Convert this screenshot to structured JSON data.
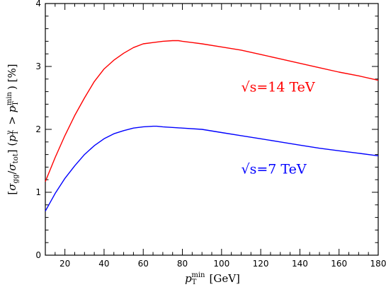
{
  "chart_data": {
    "type": "line",
    "xlabel": "p_T^min [GeV]",
    "ylabel": "[σ_gg/σ_tot] (p_T^γ > p_T^min) [%]",
    "xlim": [
      10,
      180
    ],
    "ylim": [
      0,
      4
    ],
    "x_ticks": [
      20,
      40,
      60,
      80,
      100,
      120,
      140,
      160,
      180
    ],
    "y_ticks": [
      0,
      1,
      2,
      3,
      4
    ],
    "grid": false,
    "series": [
      {
        "name": "√s=14 TeV",
        "color": "#ff0000",
        "x": [
          10,
          15,
          20,
          25,
          30,
          35,
          40,
          45,
          50,
          55,
          60,
          65,
          70,
          75,
          78,
          80,
          85,
          90,
          100,
          110,
          120,
          130,
          140,
          150,
          160,
          170,
          180
        ],
        "y": [
          1.17,
          1.55,
          1.9,
          2.22,
          2.5,
          2.76,
          2.96,
          3.1,
          3.21,
          3.3,
          3.36,
          3.38,
          3.4,
          3.41,
          3.41,
          3.4,
          3.38,
          3.36,
          3.31,
          3.26,
          3.19,
          3.12,
          3.05,
          2.98,
          2.91,
          2.85,
          2.78
        ]
      },
      {
        "name": "√s=7 TeV",
        "color": "#0000ff",
        "x": [
          10,
          15,
          20,
          25,
          30,
          35,
          40,
          45,
          50,
          55,
          60,
          65,
          67,
          70,
          80,
          90,
          100,
          110,
          120,
          130,
          140,
          150,
          160,
          170,
          180
        ],
        "y": [
          0.7,
          0.98,
          1.22,
          1.42,
          1.6,
          1.74,
          1.85,
          1.93,
          1.98,
          2.02,
          2.04,
          2.05,
          2.05,
          2.04,
          2.02,
          2.0,
          1.95,
          1.9,
          1.85,
          1.8,
          1.75,
          1.7,
          1.66,
          1.62,
          1.58
        ]
      }
    ],
    "annotations": [
      {
        "text": "√s=14 TeV",
        "color": "#ff0000",
        "x": 110,
        "y": 2.6
      },
      {
        "text": "√s=7 TeV",
        "color": "#0000ff",
        "x": 110,
        "y": 1.3
      }
    ]
  }
}
